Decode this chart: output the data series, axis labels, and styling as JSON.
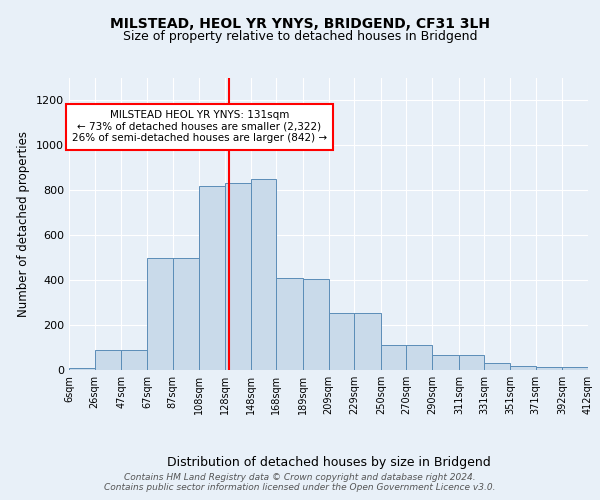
{
  "title_line1": "MILSTEAD, HEOL YR YNYS, BRIDGEND, CF31 3LH",
  "title_line2": "Size of property relative to detached houses in Bridgend",
  "xlabel": "Distribution of detached houses by size in Bridgend",
  "ylabel": "Number of detached properties",
  "bin_labels": [
    "6sqm",
    "26sqm",
    "47sqm",
    "67sqm",
    "87sqm",
    "108sqm",
    "128sqm",
    "148sqm",
    "168sqm",
    "189sqm",
    "209sqm",
    "229sqm",
    "250sqm",
    "270sqm",
    "290sqm",
    "311sqm",
    "331sqm",
    "351sqm",
    "371sqm",
    "392sqm",
    "412sqm"
  ],
  "bin_edges": [
    6,
    26,
    47,
    67,
    87,
    108,
    128,
    148,
    168,
    189,
    209,
    229,
    250,
    270,
    290,
    311,
    331,
    351,
    371,
    392,
    412
  ],
  "bar_values": [
    10,
    90,
    90,
    500,
    500,
    820,
    830,
    850,
    410,
    405,
    255,
    255,
    110,
    110,
    65,
    65,
    30,
    20,
    15,
    15,
    10
  ],
  "bar_color": "#c9daea",
  "bar_edge_color": "#5b8db8",
  "vline_x": 131,
  "vline_color": "red",
  "ylim": [
    0,
    1300
  ],
  "yticks": [
    0,
    200,
    400,
    600,
    800,
    1000,
    1200
  ],
  "annotation_text": "MILSTEAD HEOL YR YNYS: 131sqm\n← 73% of detached houses are smaller (2,322)\n26% of semi-detached houses are larger (842) →",
  "annotation_box_color": "white",
  "annotation_box_edge": "red",
  "footer_text": "Contains HM Land Registry data © Crown copyright and database right 2024.\nContains public sector information licensed under the Open Government Licence v3.0.",
  "background_color": "#e8f0f8",
  "grid_color": "white",
  "fig_width": 6.0,
  "fig_height": 5.0,
  "fig_dpi": 100
}
